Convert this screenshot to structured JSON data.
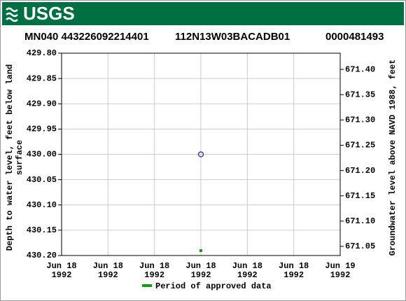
{
  "header": {
    "logo": "USGS"
  },
  "chart_data": {
    "type": "scatter",
    "title": [
      "MN040 443226092214401",
      "112N13W03BACADB01",
      "0000481493"
    ],
    "ylabel": [
      "Depth to water level, feet below land",
      "surface"
    ],
    "y2label": "Groundwater level above NAVD 1988, feet",
    "categories": [
      [
        "Jun 18",
        "1992"
      ],
      [
        "Jun 18",
        "1992"
      ],
      [
        "Jun 18",
        "1992"
      ],
      [
        "Jun 18",
        "1992"
      ],
      [
        "Jun 18",
        "1992"
      ],
      [
        "Jun 18",
        "1992"
      ],
      [
        "Jun 19",
        "1992"
      ]
    ],
    "ylim": [
      430.2,
      429.8
    ],
    "yticks": [
      {
        "value": 429.8,
        "label": "429.80"
      },
      {
        "value": 429.85,
        "label": "429.85"
      },
      {
        "value": 429.9,
        "label": "429.90"
      },
      {
        "value": 429.95,
        "label": "429.95"
      },
      {
        "value": 430.0,
        "label": "430.00"
      },
      {
        "value": 430.05,
        "label": "430.05"
      },
      {
        "value": 430.1,
        "label": "430.10"
      },
      {
        "value": 430.15,
        "label": "430.15"
      },
      {
        "value": 430.2,
        "label": "430.20"
      }
    ],
    "y2lim": [
      671.032,
      671.432
    ],
    "y2ticks": [
      {
        "value": 671.05,
        "label": "671.05"
      },
      {
        "value": 671.1,
        "label": "671.10"
      },
      {
        "value": 671.15,
        "label": "671.15"
      },
      {
        "value": 671.2,
        "label": "671.20"
      },
      {
        "value": 671.25,
        "label": "671.25"
      },
      {
        "value": 671.3,
        "label": "671.30"
      },
      {
        "value": 671.35,
        "label": "671.35"
      },
      {
        "value": 671.4,
        "label": "671.40"
      }
    ],
    "grid": true,
    "series": [
      {
        "name": "Depth to water level",
        "color": "#1c1cb4",
        "values": [
          null,
          null,
          null,
          430.0,
          null,
          null,
          null
        ]
      }
    ],
    "approved": {
      "name": "Period of approved data",
      "color": "#129e12",
      "categories": [
        3
      ]
    }
  }
}
